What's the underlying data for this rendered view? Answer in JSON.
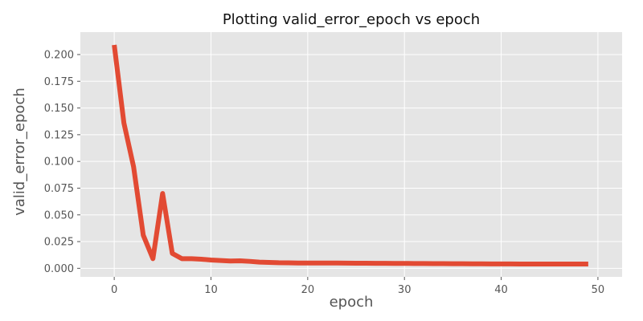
{
  "chart_data": {
    "type": "line",
    "title": "Plotting valid_error_epoch vs epoch",
    "xlabel": "epoch",
    "ylabel": "valid_error_epoch",
    "xlim": [
      -3.5,
      52.5
    ],
    "ylim": [
      -0.008,
      0.221
    ],
    "x_ticks": [
      0,
      10,
      20,
      30,
      40,
      50
    ],
    "y_ticks": [
      0.0,
      0.025,
      0.05,
      0.075,
      0.1,
      0.125,
      0.15,
      0.175,
      0.2
    ],
    "x_tick_labels": [
      "0",
      "10",
      "20",
      "30",
      "40",
      "50"
    ],
    "y_tick_labels": [
      "0.000",
      "0.025",
      "0.050",
      "0.075",
      "0.100",
      "0.125",
      "0.150",
      "0.175",
      "0.200"
    ],
    "grid": true,
    "style": "ggplot",
    "series": [
      {
        "color": "#E24A33",
        "x": [
          0,
          1,
          2,
          3,
          4,
          5,
          6,
          7,
          8,
          9,
          10,
          11,
          12,
          13,
          14,
          15,
          16,
          17,
          18,
          19,
          20,
          21,
          22,
          23,
          24,
          25,
          26,
          27,
          28,
          29,
          30,
          31,
          32,
          33,
          34,
          35,
          36,
          37,
          38,
          39,
          40,
          41,
          42,
          43,
          44,
          45,
          46,
          47,
          48,
          49
        ],
        "y": [
          0.209,
          0.136,
          0.095,
          0.031,
          0.009,
          0.07,
          0.014,
          0.009,
          0.009,
          0.0085,
          0.0078,
          0.0073,
          0.0068,
          0.007,
          0.0065,
          0.0058,
          0.0055,
          0.0052,
          0.0051,
          0.005,
          0.005,
          0.005,
          0.005,
          0.005,
          0.0049,
          0.0048,
          0.0048,
          0.0047,
          0.0047,
          0.0046,
          0.0046,
          0.0045,
          0.0045,
          0.0044,
          0.0044,
          0.0043,
          0.0043,
          0.0042,
          0.0042,
          0.0041,
          0.0041,
          0.0041,
          0.004,
          0.004,
          0.004,
          0.004,
          0.004,
          0.004,
          0.004,
          0.004
        ]
      }
    ]
  }
}
